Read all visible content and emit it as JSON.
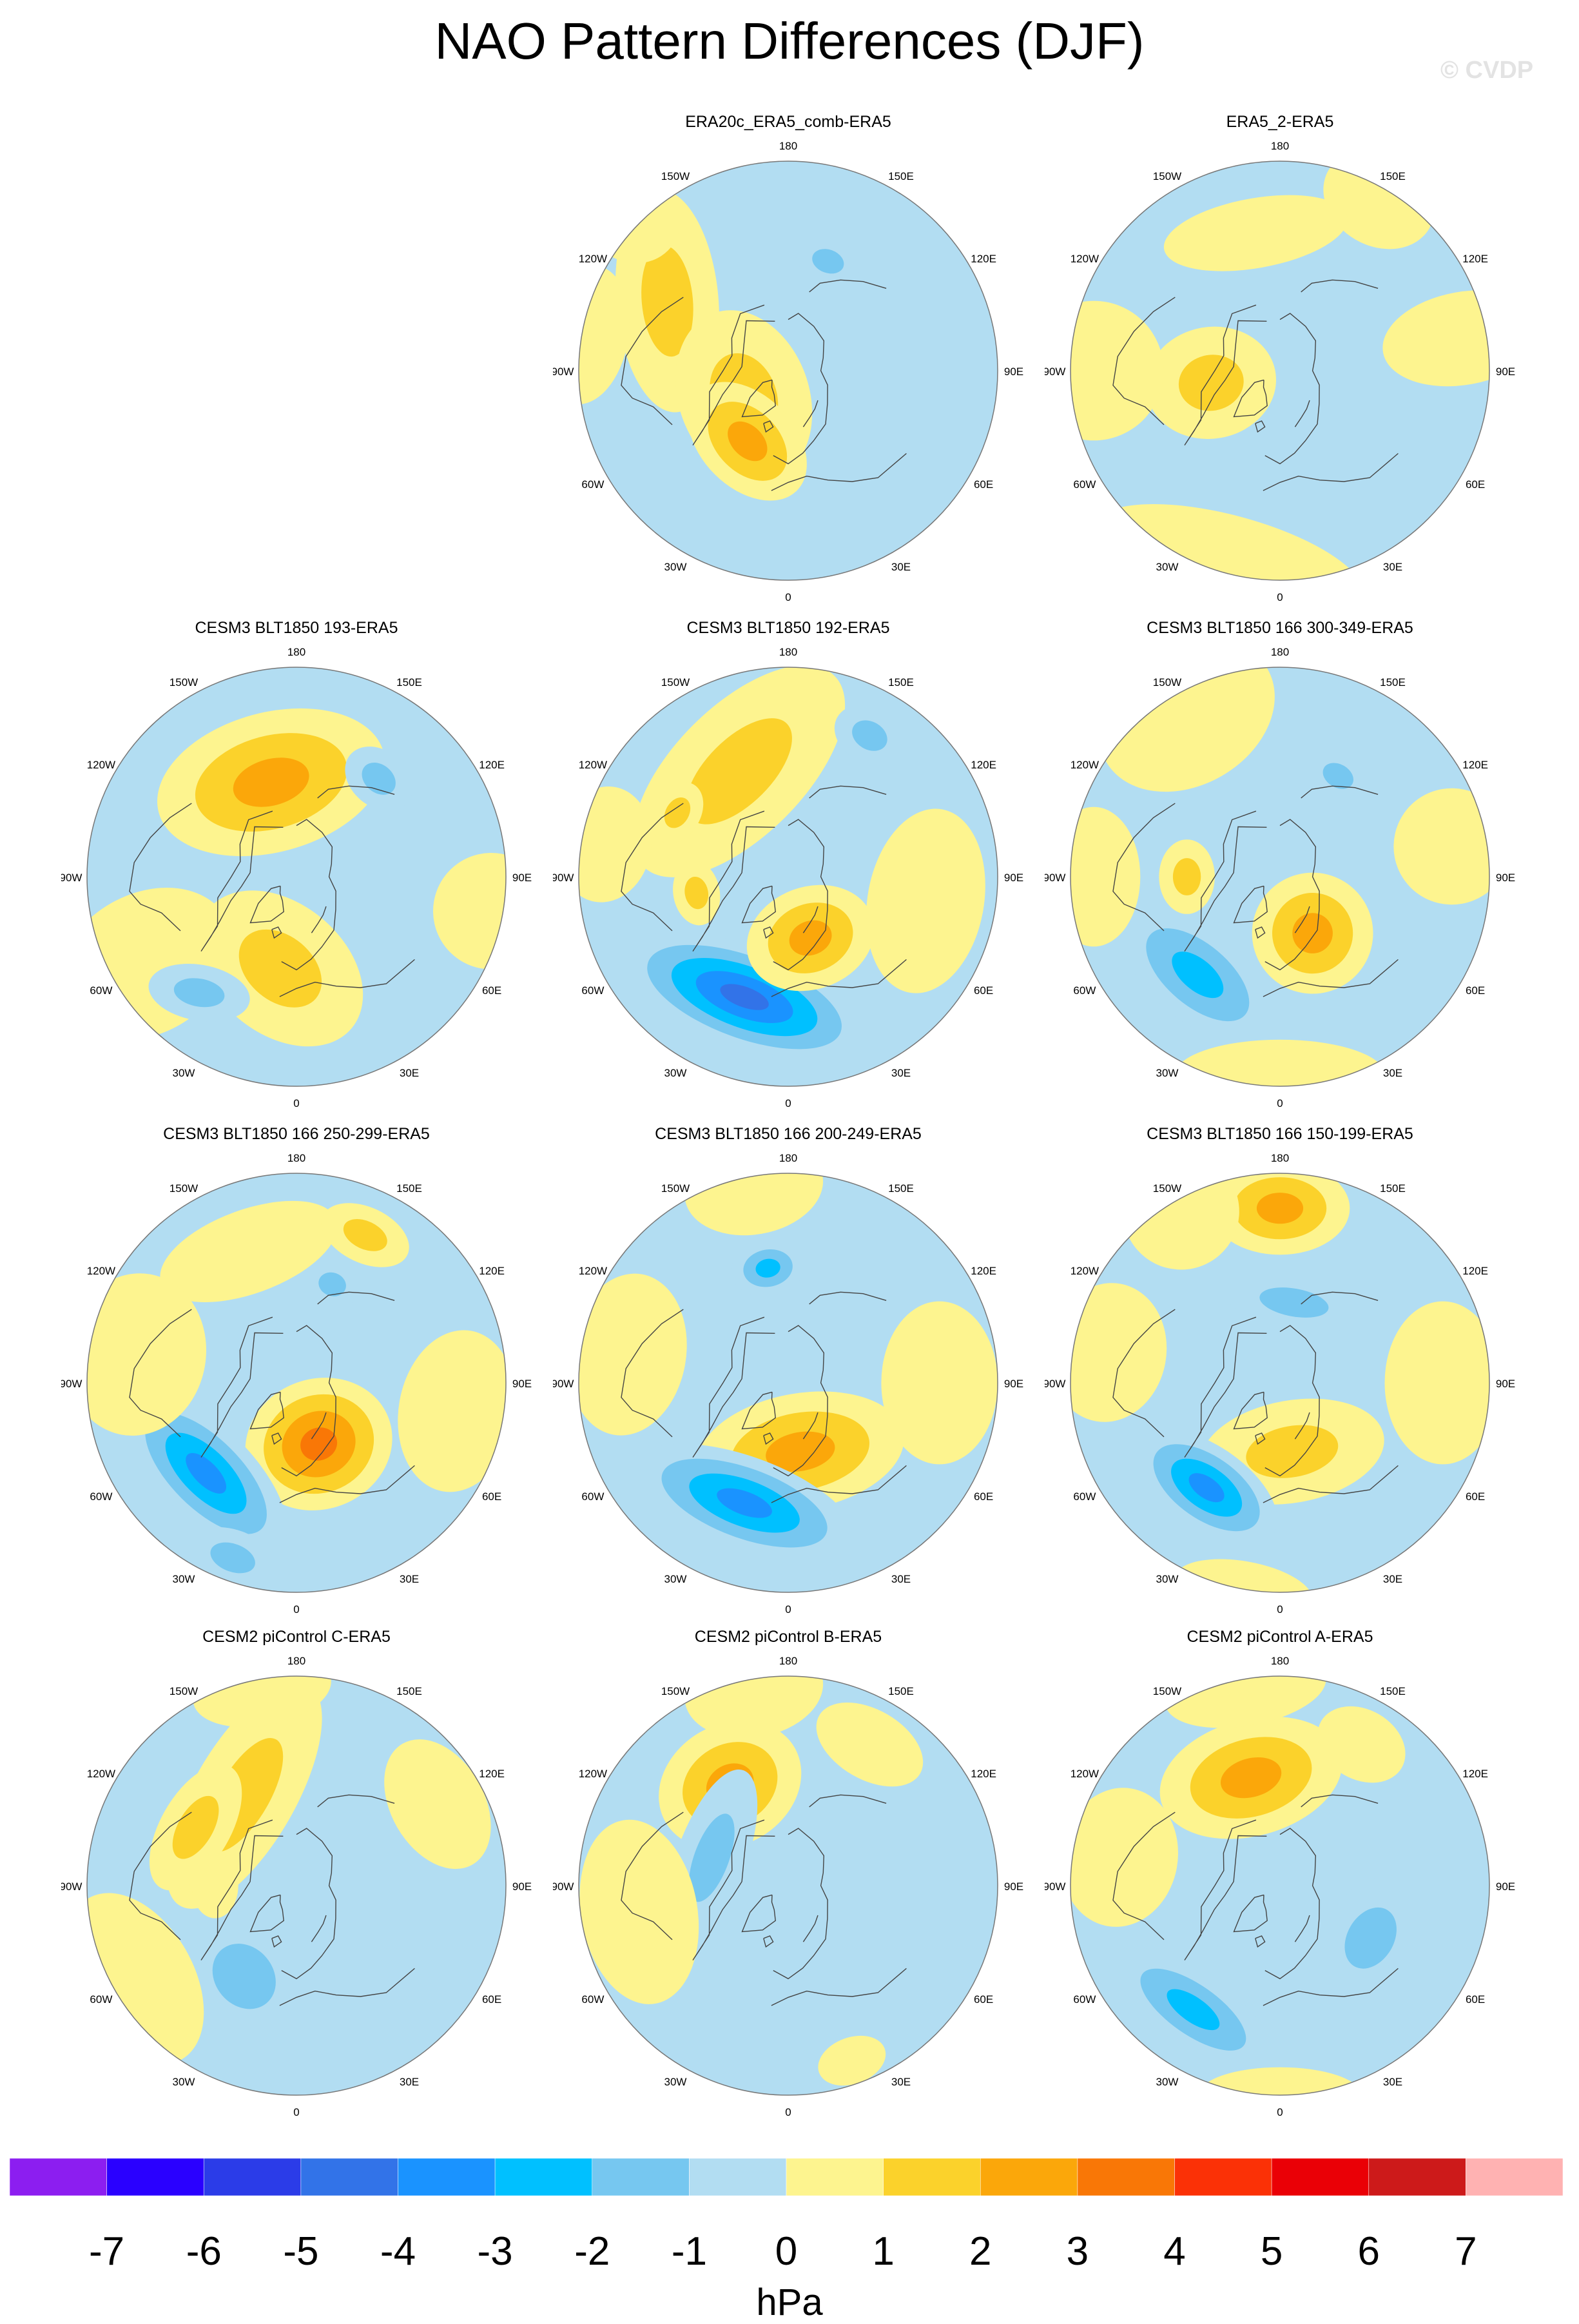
{
  "title": "NAO Pattern Differences (DJF)",
  "watermark": "© CVDP",
  "colors": {
    "levels": [
      -8,
      -7,
      -6,
      -5,
      -4,
      -3,
      -2,
      -1,
      0,
      1,
      2,
      3,
      4,
      5,
      6,
      7,
      8
    ],
    "fills": [
      "#8c1ef0",
      "#2a00ff",
      "#2b3ce8",
      "#3273e8",
      "#1a93ff",
      "#00c0ff",
      "#76c7f0",
      "#b2ddf2",
      "#fdf48f",
      "#fbd22b",
      "#fba70a",
      "#f97706",
      "#fb3106",
      "#ea0006",
      "#cd1a1a",
      "#ffb2b2"
    ],
    "outline": "#555555",
    "coastline": "#444444"
  },
  "colorbar": {
    "tick_labels": [
      "-7",
      "-6",
      "-5",
      "-4",
      "-3",
      "-2",
      "-1",
      "0",
      "1",
      "2",
      "3",
      "4",
      "5",
      "6",
      "7"
    ],
    "unit": "hPa"
  },
  "longitude_labels": [
    "180",
    "150E",
    "120E",
    "90E",
    "60E",
    "30E",
    "0",
    "30W",
    "60W",
    "90W",
    "120W",
    "150W"
  ],
  "panels": [
    {
      "title": "ERA20c_ERA5_comb-ERA5",
      "blobs": [
        {
          "lon": -120,
          "r": 60,
          "sx": 48,
          "sy": 22,
          "a": -35,
          "v": 1.5
        },
        {
          "lon": -60,
          "r": 22,
          "sx": 38,
          "sy": 28,
          "a": 10,
          "v": 1.5
        },
        {
          "lon": -30,
          "r": 35,
          "sx": 30,
          "sy": 20,
          "a": 15,
          "v": 3.2
        },
        {
          "lon": -135,
          "r": 95,
          "sx": 20,
          "sy": 22,
          "a": 0,
          "v": 0.8
        },
        {
          "lon": -100,
          "r": 88,
          "sx": 30,
          "sy": 18,
          "a": 0,
          "v": 0.8
        },
        {
          "lon": 160,
          "r": 50,
          "sx": 14,
          "sy": 10,
          "a": 0,
          "v": -1.5
        }
      ]
    },
    {
      "title": "ERA5_2-ERA5",
      "blobs": [
        {
          "lon": -15,
          "r": 85,
          "sx": 60,
          "sy": 20,
          "a": 0,
          "v": 0.8
        },
        {
          "lon": -80,
          "r": 30,
          "sx": 24,
          "sy": 28,
          "a": 0,
          "v": 1.5
        },
        {
          "lon": -90,
          "r": 80,
          "sx": 30,
          "sy": 30,
          "a": 0,
          "v": 0.8
        },
        {
          "lon": 150,
          "r": 85,
          "sx": 25,
          "sy": 20,
          "a": 0,
          "v": 0.8
        },
        {
          "lon": 100,
          "r": 80,
          "sx": 20,
          "sy": 35,
          "a": 0,
          "v": 0.8
        },
        {
          "lon": -170,
          "r": 60,
          "sx": 40,
          "sy": 15,
          "a": 0,
          "v": 0.8
        }
      ]
    },
    {
      "title": "CESM3 BLT1850 193-ERA5",
      "blobs": [
        {
          "lon": -165,
          "r": 42,
          "sx": 50,
          "sy": 30,
          "a": 0,
          "v": 3.3
        },
        {
          "lon": -10,
          "r": 40,
          "sx": 40,
          "sy": 28,
          "a": 30,
          "v": 2.3
        },
        {
          "lon": -60,
          "r": 75,
          "sx": 30,
          "sy": 40,
          "a": 0,
          "v": 0.8
        },
        {
          "lon": -40,
          "r": 65,
          "sx": 22,
          "sy": 12,
          "a": -30,
          "v": -2.3
        },
        {
          "lon": 140,
          "r": 55,
          "sx": 16,
          "sy": 12,
          "a": 0,
          "v": -1.5
        },
        {
          "lon": 80,
          "r": 85,
          "sx": 25,
          "sy": 25,
          "a": 0,
          "v": 0.8
        }
      ]
    },
    {
      "title": "CESM3 BLT1850 192-ERA5",
      "blobs": [
        {
          "lon": -155,
          "r": 50,
          "sx": 58,
          "sy": 28,
          "a": -20,
          "v": 2.3
        },
        {
          "lon": -20,
          "r": 55,
          "sx": 55,
          "sy": 22,
          "a": 0,
          "v": -4.5
        },
        {
          "lon": 20,
          "r": 28,
          "sx": 28,
          "sy": 22,
          "a": 0,
          "v": 3.2
        },
        {
          "lon": 80,
          "r": 60,
          "sx": 40,
          "sy": 25,
          "a": 0,
          "v": 0.8
        },
        {
          "lon": -100,
          "r": 80,
          "sx": 25,
          "sy": 20,
          "a": 0,
          "v": 0.8
        },
        {
          "lon": 150,
          "r": 70,
          "sx": 16,
          "sy": 12,
          "a": 0,
          "v": -1.5
        },
        {
          "lon": -80,
          "r": 40,
          "sx": 14,
          "sy": 10,
          "a": 0,
          "v": 1.5
        },
        {
          "lon": -120,
          "r": 55,
          "sx": 14,
          "sy": 10,
          "a": 0,
          "v": 1.5
        }
      ]
    },
    {
      "title": "CESM3 BLT1850 166 300-349-ERA5",
      "blobs": [
        {
          "lon": 30,
          "r": 28,
          "sx": 26,
          "sy": 26,
          "a": 0,
          "v": 3.2
        },
        {
          "lon": -40,
          "r": 55,
          "sx": 40,
          "sy": 20,
          "a": 0,
          "v": -3.3
        },
        {
          "lon": -90,
          "r": 40,
          "sx": 16,
          "sy": 12,
          "a": 0,
          "v": 1.5
        },
        {
          "lon": 150,
          "r": 50,
          "sx": 14,
          "sy": 10,
          "a": 0,
          "v": -1.5
        },
        {
          "lon": -150,
          "r": 80,
          "sx": 40,
          "sy": 30,
          "a": 0,
          "v": 0.8
        },
        {
          "lon": 0,
          "r": 85,
          "sx": 45,
          "sy": 15,
          "a": 0,
          "v": 0.8
        },
        {
          "lon": 100,
          "r": 75,
          "sx": 25,
          "sy": 25,
          "a": 0,
          "v": 0.8
        },
        {
          "lon": -90,
          "r": 80,
          "sx": 30,
          "sy": 20,
          "a": 0,
          "v": 0.8
        }
      ]
    },
    {
      "title": "CESM3 BLT1850 166 250-299-ERA5",
      "blobs": [
        {
          "lon": 20,
          "r": 28,
          "sx": 32,
          "sy": 28,
          "a": 0,
          "v": 4.2
        },
        {
          "lon": -45,
          "r": 55,
          "sx": 45,
          "sy": 20,
          "a": 0,
          "v": -4.3
        },
        {
          "lon": -160,
          "r": 60,
          "sx": 40,
          "sy": 18,
          "a": 0,
          "v": 0.8
        },
        {
          "lon": 155,
          "r": 70,
          "sx": 20,
          "sy": 12,
          "a": 0,
          "v": 1.5
        },
        {
          "lon": 160,
          "r": 45,
          "sx": 12,
          "sy": 10,
          "a": 0,
          "v": -1.5
        },
        {
          "lon": 80,
          "r": 70,
          "sx": 35,
          "sy": 25,
          "a": 0,
          "v": 0.8
        },
        {
          "lon": -100,
          "r": 70,
          "sx": 35,
          "sy": 30,
          "a": 0,
          "v": 0.8
        },
        {
          "lon": -20,
          "r": 80,
          "sx": 20,
          "sy": 12,
          "a": 0,
          "v": -1.5
        }
      ]
    },
    {
      "title": "CESM3 BLT1850 166 200-249-ERA5",
      "blobs": [
        {
          "lon": 10,
          "r": 30,
          "sx": 45,
          "sy": 25,
          "a": 0,
          "v": 3.2
        },
        {
          "lon": -20,
          "r": 55,
          "sx": 50,
          "sy": 20,
          "a": 0,
          "v": -3.5
        },
        {
          "lon": -170,
          "r": 50,
          "sx": 16,
          "sy": 12,
          "a": 0,
          "v": -3.0
        },
        {
          "lon": -100,
          "r": 70,
          "sx": 35,
          "sy": 25,
          "a": 0,
          "v": 0.8
        },
        {
          "lon": 90,
          "r": 65,
          "sx": 35,
          "sy": 25,
          "a": 0,
          "v": 0.8
        },
        {
          "lon": -170,
          "r": 85,
          "sx": 30,
          "sy": 20,
          "a": 0,
          "v": 0.8
        }
      ]
    },
    {
      "title": "CESM3 BLT1850 166 150-199-ERA5",
      "blobs": [
        {
          "lon": 180,
          "r": 75,
          "sx": 30,
          "sy": 20,
          "a": 0,
          "v": 3.2
        },
        {
          "lon": 10,
          "r": 30,
          "sx": 40,
          "sy": 22,
          "a": 0,
          "v": 2.3
        },
        {
          "lon": -35,
          "r": 55,
          "sx": 35,
          "sy": 18,
          "a": 0,
          "v": -3.5
        },
        {
          "lon": 170,
          "r": 35,
          "sx": 30,
          "sy": 12,
          "a": 0,
          "v": -1.5
        },
        {
          "lon": -100,
          "r": 75,
          "sx": 30,
          "sy": 25,
          "a": 0,
          "v": 0.8
        },
        {
          "lon": 90,
          "r": 70,
          "sx": 35,
          "sy": 25,
          "a": 0,
          "v": 0.8
        },
        {
          "lon": -150,
          "r": 85,
          "sx": 25,
          "sy": 25,
          "a": 0,
          "v": 0.8
        },
        {
          "lon": -10,
          "r": 90,
          "sx": 30,
          "sy": 12,
          "a": 0,
          "v": 0.8
        }
      ]
    },
    {
      "title": "CESM2 piControl C-ERA5",
      "blobs": [
        {
          "lon": -150,
          "r": 45,
          "sx": 55,
          "sy": 22,
          "a": -30,
          "v": 2.3
        },
        {
          "lon": -30,
          "r": 45,
          "sx": 30,
          "sy": 25,
          "a": 20,
          "v": -2.3
        },
        {
          "lon": -120,
          "r": 50,
          "sx": 30,
          "sy": 15,
          "a": 0,
          "v": 1.5
        },
        {
          "lon": -60,
          "r": 80,
          "sx": 40,
          "sy": 25,
          "a": 0,
          "v": 0.8
        },
        {
          "lon": -90,
          "r": 35,
          "sx": 14,
          "sy": 10,
          "a": 0,
          "v": 0.8
        },
        {
          "lon": 120,
          "r": 70,
          "sx": 30,
          "sy": 20,
          "a": 0,
          "v": 0.8
        },
        {
          "lon": -170,
          "r": 85,
          "sx": 30,
          "sy": 15,
          "a": 0,
          "v": 0.8
        }
      ]
    },
    {
      "title": "CESM2 piControl B-ERA5",
      "blobs": [
        {
          "lon": -150,
          "r": 50,
          "sx": 32,
          "sy": 26,
          "a": 0,
          "v": 3.2
        },
        {
          "lon": -110,
          "r": 35,
          "sx": 40,
          "sy": 15,
          "a": 0,
          "v": -2.3
        },
        {
          "lon": -80,
          "r": 65,
          "sx": 40,
          "sy": 25,
          "a": 0,
          "v": 0.8
        },
        {
          "lon": 20,
          "r": 80,
          "sx": 15,
          "sy": 10,
          "a": 0,
          "v": 0.8
        },
        {
          "lon": 150,
          "r": 70,
          "sx": 25,
          "sy": 15,
          "a": 0,
          "v": 0.8
        },
        {
          "lon": -170,
          "r": 85,
          "sx": 30,
          "sy": 20,
          "a": 0,
          "v": 0.8
        }
      ]
    },
    {
      "title": "CESM2 piControl A-ERA5",
      "blobs": [
        {
          "lon": -165,
          "r": 48,
          "sx": 40,
          "sy": 25,
          "a": 0,
          "v": 2.6
        },
        {
          "lon": -35,
          "r": 65,
          "sx": 40,
          "sy": 16,
          "a": 0,
          "v": -2.5
        },
        {
          "lon": 60,
          "r": 45,
          "sx": 28,
          "sy": 20,
          "a": 0,
          "v": -2.4
        },
        {
          "lon": -100,
          "r": 70,
          "sx": 30,
          "sy": 25,
          "a": 0,
          "v": 0.8
        },
        {
          "lon": 150,
          "r": 70,
          "sx": 20,
          "sy": 15,
          "a": 0,
          "v": 0.8
        },
        {
          "lon": -170,
          "r": 85,
          "sx": 35,
          "sy": 15,
          "a": 0,
          "v": 0.8
        },
        {
          "lon": 0,
          "r": 90,
          "sx": 35,
          "sy": 12,
          "a": 0,
          "v": 0.8
        }
      ]
    }
  ]
}
